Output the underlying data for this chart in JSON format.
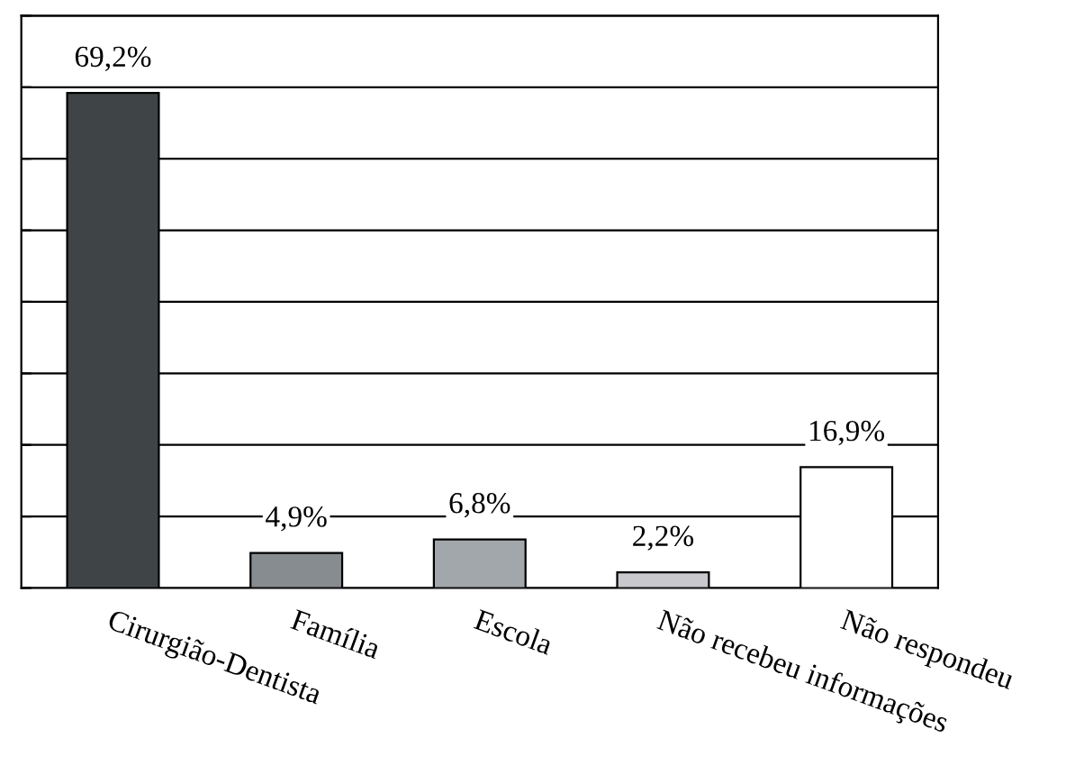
{
  "chart_data": {
    "type": "bar",
    "categories": [
      "Cirurgião-Dentista",
      "Família",
      "Escola",
      "Não recebeu informações",
      "Não respondeu"
    ],
    "values": [
      69.2,
      4.9,
      6.8,
      2.2,
      16.9
    ],
    "colors": [
      "#3f4546",
      "#878c90",
      "#a2a7ab",
      "#c9c9cd",
      "#ffffff"
    ],
    "value_labels": [
      "69,2%",
      "4,9%",
      "6,8%",
      "2,2%",
      "16,9%"
    ],
    "ylim": [
      0,
      80
    ],
    "yticks": [
      {
        "value": 0,
        "label": null
      },
      {
        "value": 10,
        "label": null
      },
      {
        "value": 20,
        "label": null
      },
      {
        "value": 30,
        "label": null
      },
      {
        "value": 40,
        "label": null
      },
      {
        "value": 50,
        "label": null
      },
      {
        "value": 60,
        "label": null
      },
      {
        "value": 70,
        "label": null
      },
      {
        "value": 80,
        "label": null
      }
    ],
    "tick_labels": "x",
    "grid": "y"
  }
}
